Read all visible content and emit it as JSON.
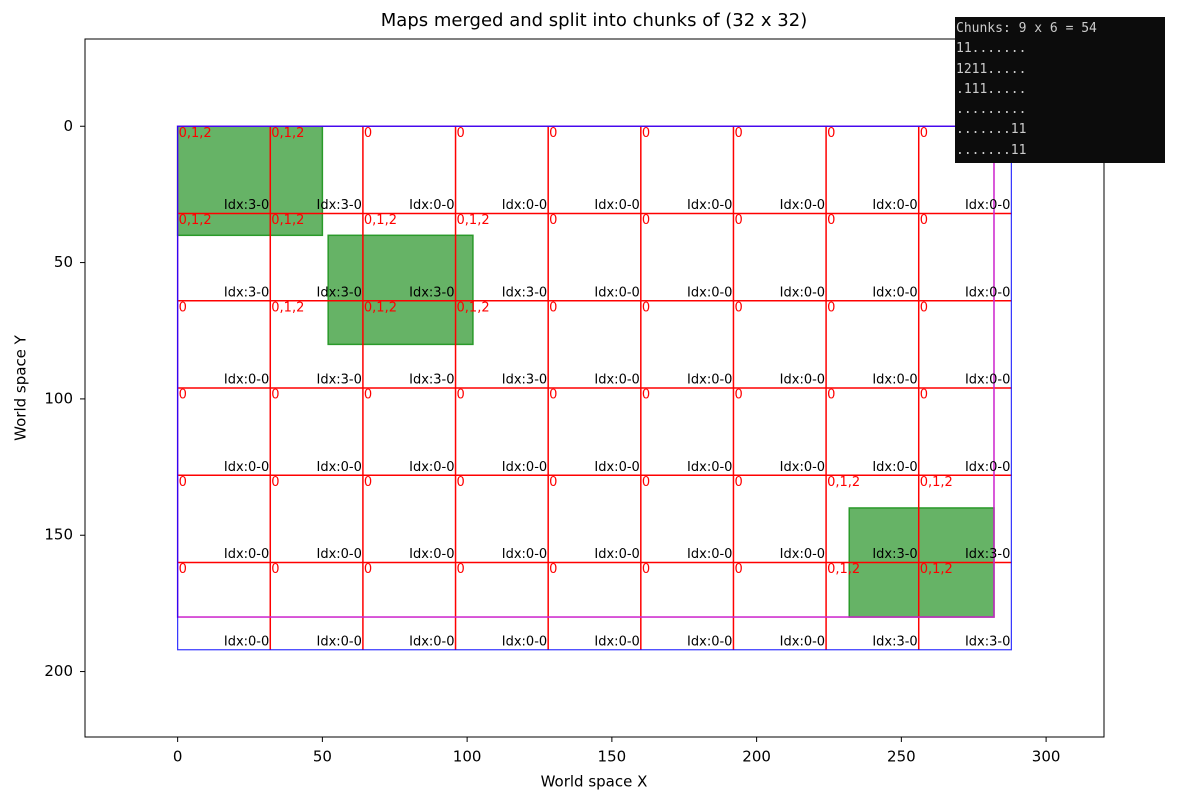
{
  "chart_data": {
    "type": "chunk_map",
    "title": "Maps merged and split into chunks of (32 x 32)",
    "xlabel": "World space X",
    "ylabel": "World space Y",
    "xlim": [
      -32,
      320
    ],
    "ylim": [
      224,
      -32
    ],
    "xticks": [
      0,
      50,
      100,
      150,
      200,
      250,
      300
    ],
    "yticks": [
      0,
      50,
      100,
      150,
      200
    ],
    "col_edges": [
      0,
      32,
      64,
      96,
      128,
      160,
      192,
      224,
      256,
      288
    ],
    "row_edges": [
      0,
      32,
      64,
      96,
      128,
      160,
      192
    ],
    "bounds": {
      "x": [
        0,
        282
      ],
      "y": [
        0,
        180
      ]
    },
    "maps": [
      {
        "x": [
          0,
          50
        ],
        "y": [
          0,
          40
        ]
      },
      {
        "x": [
          52,
          102
        ],
        "y": [
          40,
          80
        ]
      },
      {
        "x": [
          232,
          282
        ],
        "y": [
          140,
          180
        ]
      }
    ],
    "idx_labels": [
      [
        "Idx:3-0",
        "Idx:3-0",
        "Idx:0-0",
        "Idx:0-0",
        "Idx:0-0",
        "Idx:0-0",
        "Idx:0-0",
        "Idx:0-0",
        "Idx:0-0"
      ],
      [
        "Idx:3-0",
        "Idx:3-0",
        "Idx:3-0",
        "Idx:3-0",
        "Idx:0-0",
        "Idx:0-0",
        "Idx:0-0",
        "Idx:0-0",
        "Idx:0-0"
      ],
      [
        "Idx:0-0",
        "Idx:3-0",
        "Idx:3-0",
        "Idx:3-0",
        "Idx:0-0",
        "Idx:0-0",
        "Idx:0-0",
        "Idx:0-0",
        "Idx:0-0"
      ],
      [
        "Idx:0-0",
        "Idx:0-0",
        "Idx:0-0",
        "Idx:0-0",
        "Idx:0-0",
        "Idx:0-0",
        "Idx:0-0",
        "Idx:0-0",
        "Idx:0-0"
      ],
      [
        "Idx:0-0",
        "Idx:0-0",
        "Idx:0-0",
        "Idx:0-0",
        "Idx:0-0",
        "Idx:0-0",
        "Idx:0-0",
        "Idx:3-0",
        "Idx:3-0"
      ],
      [
        "Idx:0-0",
        "Idx:0-0",
        "Idx:0-0",
        "Idx:0-0",
        "Idx:0-0",
        "Idx:0-0",
        "Idx:0-0",
        "Idx:3-0",
        "Idx:3-0"
      ]
    ],
    "layer_labels": [
      [
        "0,1,2",
        "0,1,2",
        "0",
        "0",
        "0",
        "0",
        "0",
        "0",
        "0"
      ],
      [
        "0,1,2",
        "0,1,2",
        "0,1,2",
        "0,1,2",
        "0",
        "0",
        "0",
        "0",
        "0"
      ],
      [
        "0",
        "0,1,2",
        "0,1,2",
        "0,1,2",
        "0",
        "0",
        "0",
        "0",
        "0"
      ],
      [
        "0",
        "0",
        "0",
        "0",
        "0",
        "0",
        "0",
        "0",
        "0"
      ],
      [
        "0",
        "0",
        "0",
        "0",
        "0",
        "0",
        "0",
        "0,1,2",
        "0,1,2"
      ],
      [
        "0",
        "0",
        "0",
        "0",
        "0",
        "0",
        "0",
        "0,1,2",
        "0,1,2"
      ]
    ]
  },
  "console": {
    "lines": [
      "Chunks: 9 x 6 = 54",
      "11.......",
      "1211.....",
      ".111.....",
      ".........",
      ".......11",
      ".......11"
    ]
  }
}
